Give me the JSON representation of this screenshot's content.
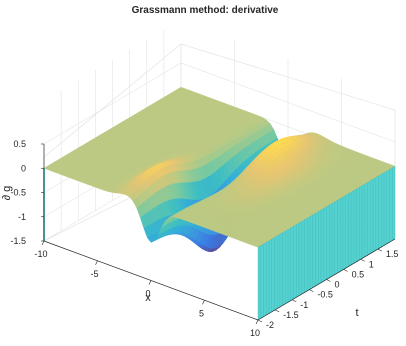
{
  "chart_data": {
    "type": "surface",
    "title": "Grassmann method: derivative",
    "xlabel": "x",
    "ylabel": "t",
    "zlabel": "∂ g",
    "xlim": [
      -10,
      10
    ],
    "ylim": [
      -2,
      2
    ],
    "zlim": [
      -1.5,
      0.5
    ],
    "x_ticks": [
      "-10",
      "-5",
      "0",
      "5",
      "10"
    ],
    "t_ticks": [
      "-2",
      "-1.5",
      "-1",
      "-0.5",
      "0",
      "0.5",
      "1",
      "1.5"
    ],
    "z_ticks": [
      "0.5",
      "0",
      "-0.5",
      "-1",
      "-1.5"
    ],
    "grid": true,
    "colormap": "parula",
    "colors": {
      "high": "#f5e27a",
      "mid": "#36c3b0",
      "low": "#3a2bd6",
      "edge": "#55d1d0"
    },
    "surface_features": {
      "plateau_level": 0,
      "trough_min": -1.5,
      "ridge_max": 0.4,
      "trough_center_x": 0,
      "description_values": {
        "x_center": 0,
        "t_center": 0
      }
    }
  }
}
